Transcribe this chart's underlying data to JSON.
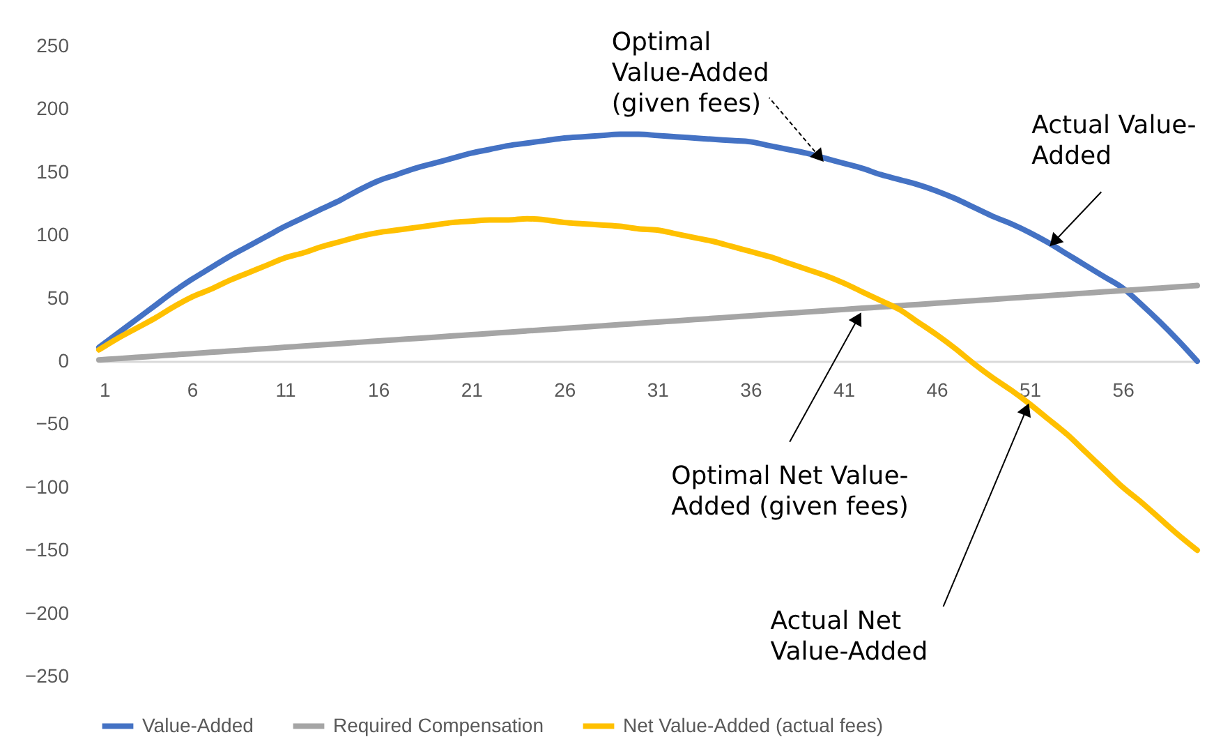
{
  "chart_data": {
    "type": "line",
    "x": [
      1,
      2,
      3,
      4,
      5,
      6,
      7,
      8,
      9,
      10,
      11,
      12,
      13,
      14,
      15,
      16,
      17,
      18,
      19,
      20,
      21,
      22,
      23,
      24,
      25,
      26,
      27,
      28,
      29,
      30,
      31,
      32,
      33,
      34,
      35,
      36,
      37,
      38,
      39,
      40,
      41,
      42,
      43,
      44,
      45,
      46,
      47,
      48,
      49,
      50,
      51,
      52,
      53,
      54,
      55,
      56,
      57,
      58,
      59,
      60
    ],
    "series": [
      {
        "name": "Value-Added",
        "color": "#4472c4",
        "values": [
          11,
          22,
          33,
          44,
          55,
          65,
          74,
          83,
          91,
          99,
          107,
          114,
          121,
          128,
          136,
          143,
          148,
          153,
          157,
          161,
          165,
          168,
          171,
          173,
          175,
          177,
          178,
          179,
          180,
          180,
          179,
          178,
          177,
          176,
          175,
          174,
          171,
          168,
          165,
          161,
          157,
          153,
          148,
          144,
          140,
          135,
          129,
          122,
          115,
          109,
          102,
          94,
          85,
          76,
          67,
          58,
          45,
          31,
          16,
          0
        ]
      },
      {
        "name": "Required Compensation",
        "color": "#a5a5a5",
        "values": [
          1,
          2,
          3,
          4,
          5,
          6,
          7,
          8,
          9,
          10,
          11,
          12,
          13,
          14,
          15,
          16,
          17,
          18,
          19,
          20,
          21,
          22,
          23,
          24,
          25,
          26,
          27,
          28,
          29,
          30,
          31,
          32,
          33,
          34,
          35,
          36,
          37,
          38,
          39,
          40,
          41,
          42,
          43,
          44,
          45,
          46,
          47,
          48,
          49,
          50,
          51,
          52,
          53,
          54,
          55,
          56,
          57,
          58,
          59,
          60
        ]
      },
      {
        "name": "Net Value-Added (actual fees)",
        "color": "#ffc000",
        "values": [
          9,
          18,
          26,
          34,
          43,
          51,
          57,
          64,
          70,
          76,
          82,
          86,
          91,
          95,
          99,
          102,
          104,
          106,
          108,
          110,
          111,
          112,
          112,
          113,
          112,
          110,
          109,
          108,
          107,
          105,
          104,
          101,
          98,
          95,
          91,
          87,
          83,
          78,
          73,
          68,
          62,
          55,
          48,
          41,
          31,
          21,
          10,
          -2,
          -13,
          -23,
          -34,
          -46,
          -58,
          -72,
          -86,
          -100,
          -112,
          -125,
          -138,
          -150
        ]
      }
    ],
    "xlim": [
      1,
      60
    ],
    "xticks": [
      1,
      6,
      11,
      16,
      21,
      26,
      31,
      36,
      41,
      46,
      51,
      56
    ],
    "ylim": [
      -250,
      250
    ],
    "yticks": [
      -250,
      -200,
      -150,
      -100,
      -50,
      0,
      50,
      100,
      150,
      200,
      250
    ],
    "legend": "bottom",
    "annotations": [
      {
        "text": "Optimal Value-Added (given fees)",
        "x": 40,
        "y": 157
      },
      {
        "text": "Actual Value-Added",
        "x": 52,
        "y": 90
      },
      {
        "text": "Optimal Net Value-Added (given fees)",
        "x": 42,
        "y": 40
      },
      {
        "text": "Actual Net Value-Added",
        "x": 51,
        "y": -32
      }
    ]
  }
}
